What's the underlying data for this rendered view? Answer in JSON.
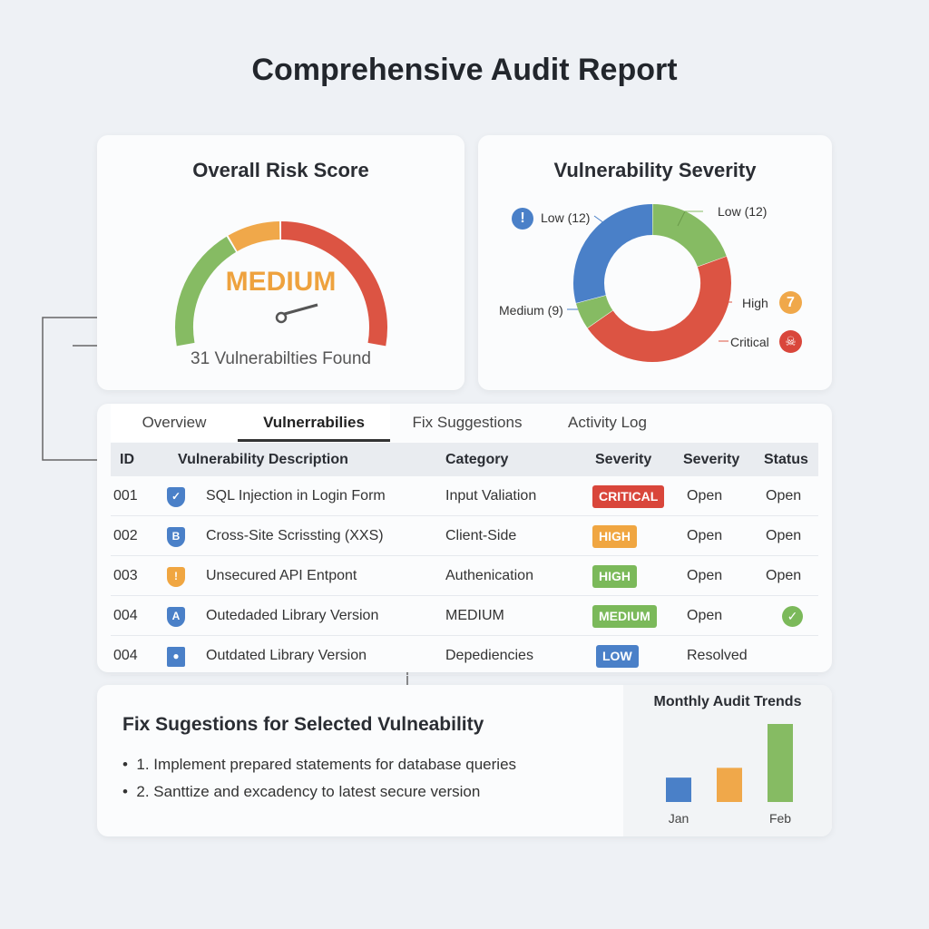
{
  "title": "Comprehensive Audit Report",
  "risk": {
    "title": "Overall Risk Score",
    "level": "MEDIUM",
    "found": "31 Vulnerabilties Found"
  },
  "severity": {
    "title": "Vulnerability Severity",
    "labels": {
      "low_left": "Low (12)",
      "low_right": "Low (12)",
      "medium": "Medium (9)",
      "high": "High",
      "high_badge": "7",
      "critical": "Critical"
    },
    "colors": {
      "green": "#86bb63",
      "blue": "#4a80c8",
      "red": "#dc5443",
      "orange": "#f0a84a"
    }
  },
  "tabs": [
    {
      "label": "Overview"
    },
    {
      "label": "Vulnerrabilies",
      "active": true
    },
    {
      "label": "Fix Suggestions"
    },
    {
      "label": "Activity Log"
    }
  ],
  "table": {
    "headers": [
      "ID",
      "Vulnerability Description",
      "Category",
      "Severity",
      "Severity",
      "Status"
    ],
    "rows": [
      {
        "id": "001",
        "icon": "shield-check-icon",
        "desc": "SQL Injection in Login Form",
        "category": "Input Valiation",
        "badge": "CRITICAL",
        "badge_color": "#d9463b",
        "sev2": "Open",
        "status": "Open"
      },
      {
        "id": "002",
        "icon": "shield-b-icon",
        "desc": "Cross-Site Scrissting (XXS)",
        "category": "Client-Side",
        "badge": "HIGH",
        "badge_color": "#f0a641",
        "sev2": "Open",
        "status": "Open"
      },
      {
        "id": "003",
        "icon": "shield-warning-icon",
        "desc": "Unsecured API Entpont",
        "category": "Authenication",
        "badge": "HIGH",
        "badge_color": "#7bb95a",
        "sev2": "Open",
        "status": "Open"
      },
      {
        "id": "004",
        "icon": "shield-a-icon",
        "desc": "Outedaded Library Version",
        "category": "MEDIUM",
        "badge": "MEDIUM",
        "badge_color": "#7bb95a",
        "sev2": "Open",
        "status": "check-icon"
      },
      {
        "id": "004",
        "icon": "user-icon",
        "desc": "Outdated Library Version",
        "category": "Depediencies",
        "badge": "LOW",
        "badge_color": "#4a80c8",
        "sev2": "Resolved",
        "status": ""
      }
    ]
  },
  "fix": {
    "title": "Fix Sugestions for Selected Vulneability",
    "items": [
      "1. Implement prepared statements for database queries",
      "2. Santtize and excadency to latest secure version"
    ]
  },
  "chart_data": {
    "type": "bar",
    "title": "Monthly Audit Trends",
    "categories": [
      "Jan",
      "",
      "Feb"
    ],
    "values": [
      3,
      4.2,
      9.6
    ],
    "colors": [
      "#4a80c8",
      "#f0a84a",
      "#86bb63"
    ]
  }
}
